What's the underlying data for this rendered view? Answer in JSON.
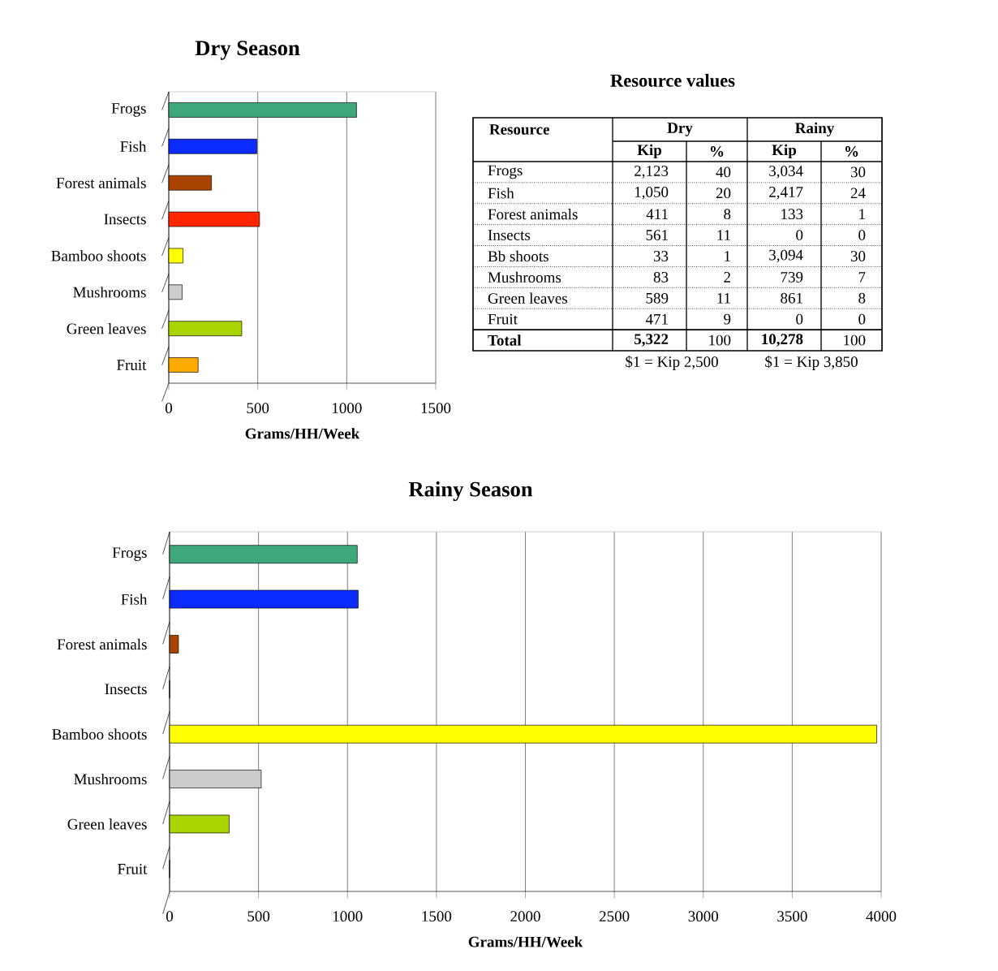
{
  "chart_data": [
    {
      "type": "bar",
      "orientation": "horizontal",
      "title": "Dry Season",
      "xlabel": "Grams/HH/Week",
      "categories": [
        "Frogs",
        "Fish",
        "Forest animals",
        "Insects",
        "Bamboo shoots",
        "Mushrooms",
        "Green leaves",
        "Fruit"
      ],
      "values": [
        1055,
        495,
        240,
        510,
        80,
        75,
        410,
        165
      ],
      "colors": [
        "#3fa87a",
        "#0c2bff",
        "#a84400",
        "#ff2600",
        "#ffff00",
        "#cccccc",
        "#aad400",
        "#ffaa00"
      ],
      "xlim": [
        0,
        1500
      ],
      "xticks": [
        0,
        500,
        1000,
        1500
      ],
      "grid": "x"
    },
    {
      "type": "other",
      "title": "Resource values",
      "annotations": [
        "Resource",
        "Dry",
        "Rainy",
        "Kip",
        "%",
        "Kip",
        "%",
        "Frogs",
        "2,123",
        "40",
        "3,034",
        "30",
        "Fish",
        "1,050",
        "20",
        "2,417",
        "24",
        "Forest animals",
        "411",
        "8",
        "133",
        "1",
        "Insects",
        "561",
        "11",
        "0",
        "0",
        "Bb shoots",
        "33",
        "1",
        "3,094",
        "30",
        "Mushrooms",
        "83",
        "2",
        "739",
        "7",
        "Green leaves",
        "589",
        "11",
        "861",
        "8",
        "Fruit",
        "471",
        "9",
        "0",
        "0",
        "Total",
        "5,322",
        "100",
        "10,278",
        "100",
        "$1 = Kip 2,500",
        "$1 = Kip 3,850"
      ]
    },
    {
      "type": "bar",
      "orientation": "horizontal",
      "title": "Rainy Season",
      "xlabel": "Grams/HH/Week",
      "categories": [
        "Frogs",
        "Fish",
        "Forest animals",
        "Insects",
        "Bamboo shoots",
        "Mushrooms",
        "Green leaves",
        "Fruit"
      ],
      "values": [
        1055,
        1060,
        50,
        0,
        3975,
        515,
        335,
        0
      ],
      "colors": [
        "#3fa87a",
        "#0c2bff",
        "#a84400",
        "#ff2600",
        "#ffff00",
        "#cccccc",
        "#aad400",
        "#ffaa00"
      ],
      "xlim": [
        0,
        4000
      ],
      "xticks": [
        0,
        500,
        1000,
        1500,
        2000,
        2500,
        3000,
        3500,
        4000
      ],
      "grid": "x"
    }
  ]
}
